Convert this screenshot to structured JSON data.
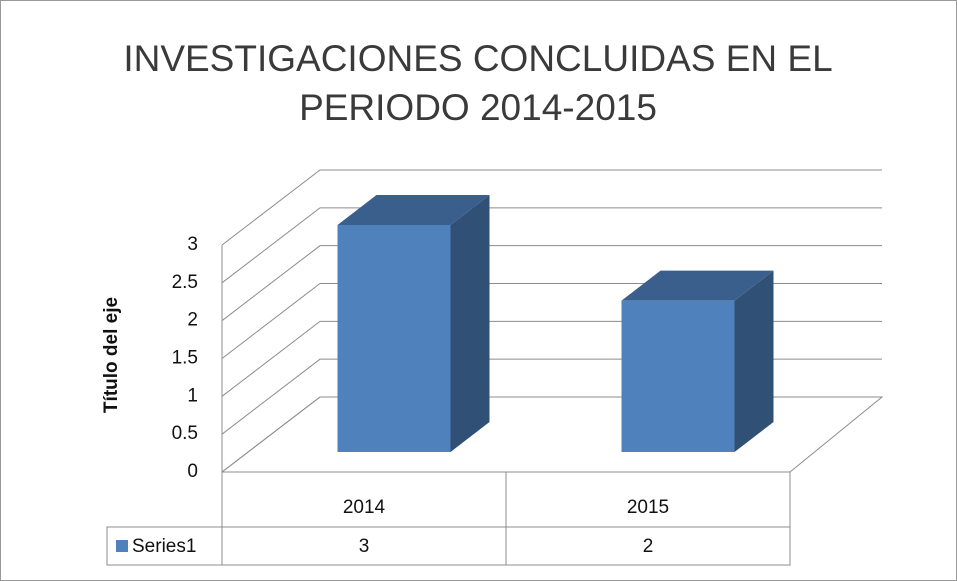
{
  "chart_data": {
    "type": "bar3d",
    "title": "INVESTIGACIONES CONCLUIDAS EN EL PERIODO 2014-2015",
    "y_label": "Título del eje",
    "categories": [
      "2014",
      "2015"
    ],
    "series": [
      {
        "name": "Series1",
        "color": "#4f81bd",
        "values": [
          3,
          2
        ]
      }
    ],
    "ylim": [
      0,
      3
    ],
    "yticks": [
      0,
      0.5,
      1,
      1.5,
      2,
      2.5,
      3
    ],
    "grid": true,
    "data_table": true
  }
}
